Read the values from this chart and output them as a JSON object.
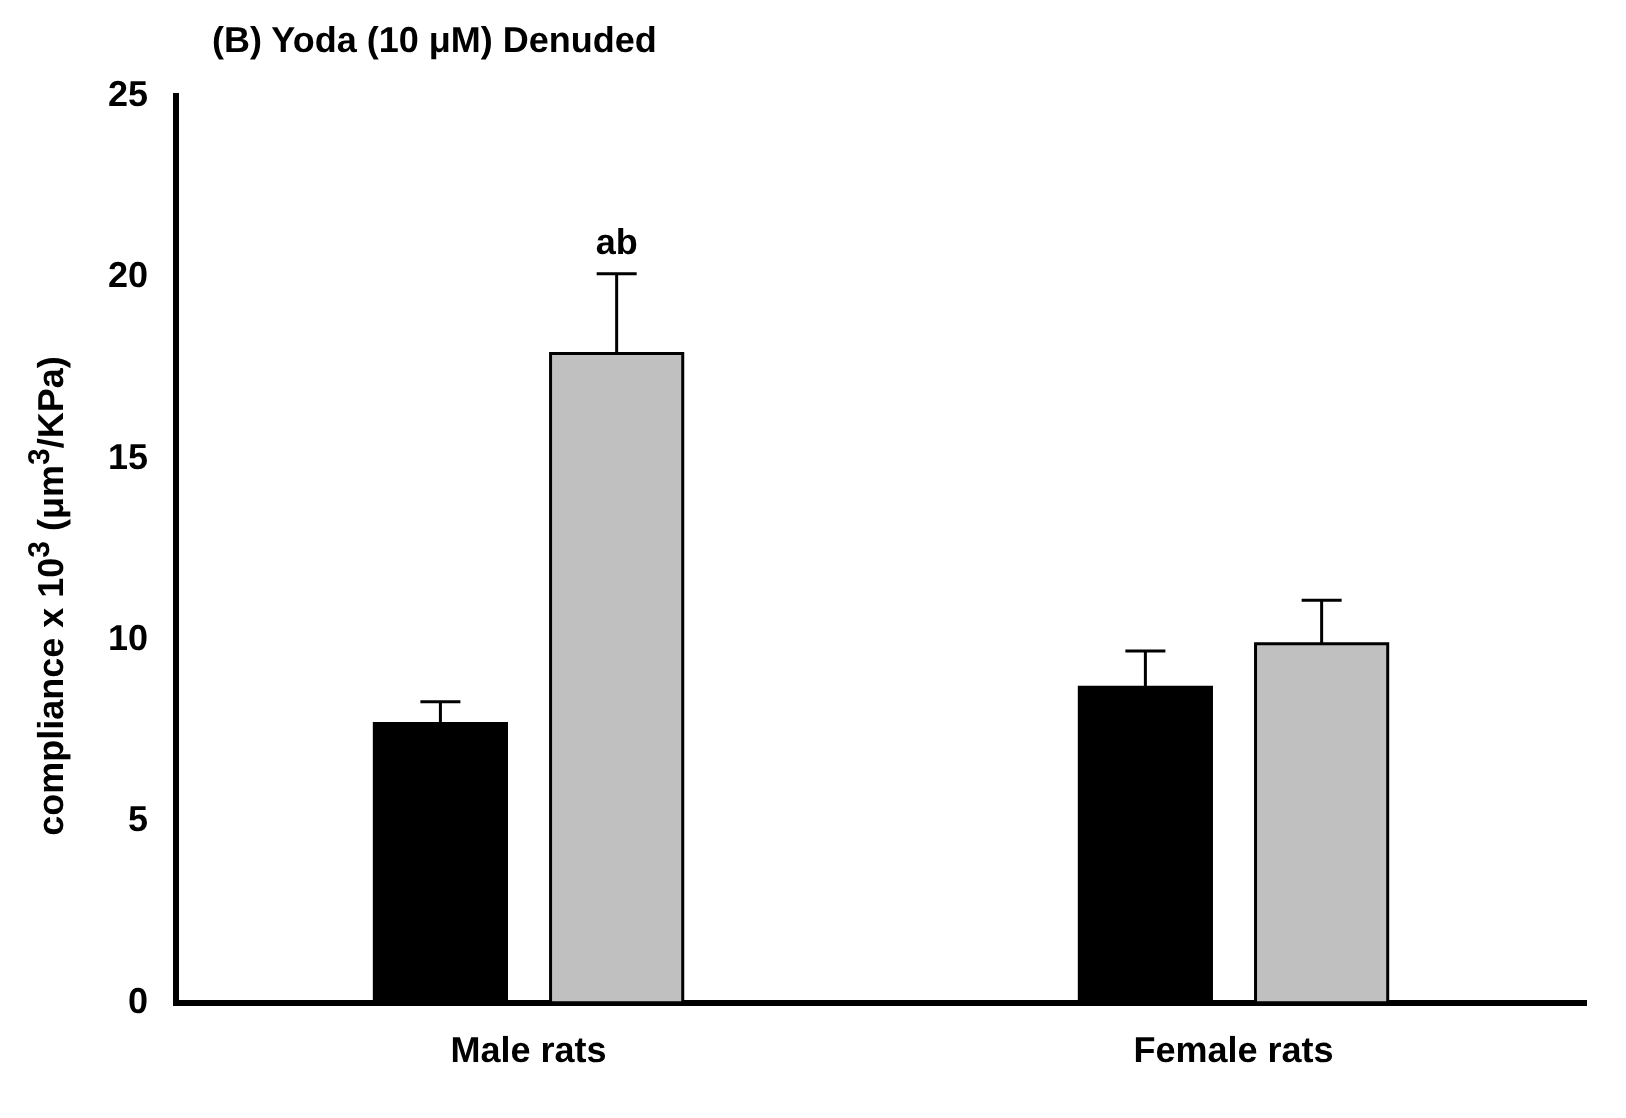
{
  "chart_data": {
    "type": "bar",
    "title": "(B) Yoda (10 μM) Denuded",
    "ylabel": "compliance x 10$^{3}$ (μm$^{3}$/KPa)",
    "categories": [
      "Male rats",
      "Female rats"
    ],
    "series": [
      {
        "color": "#000000",
        "values": [
          7.7,
          8.7
        ],
        "errors": [
          0.6,
          1.0
        ]
      },
      {
        "color": "#c0c0c0",
        "values": [
          17.9,
          9.9
        ],
        "errors": [
          2.2,
          1.2
        ]
      }
    ],
    "annotations": [
      "ab"
    ],
    "ylim": [
      0,
      25
    ],
    "yticks": [
      0,
      5,
      10,
      15,
      20,
      25
    ],
    "grid": false,
    "legend": false
  }
}
